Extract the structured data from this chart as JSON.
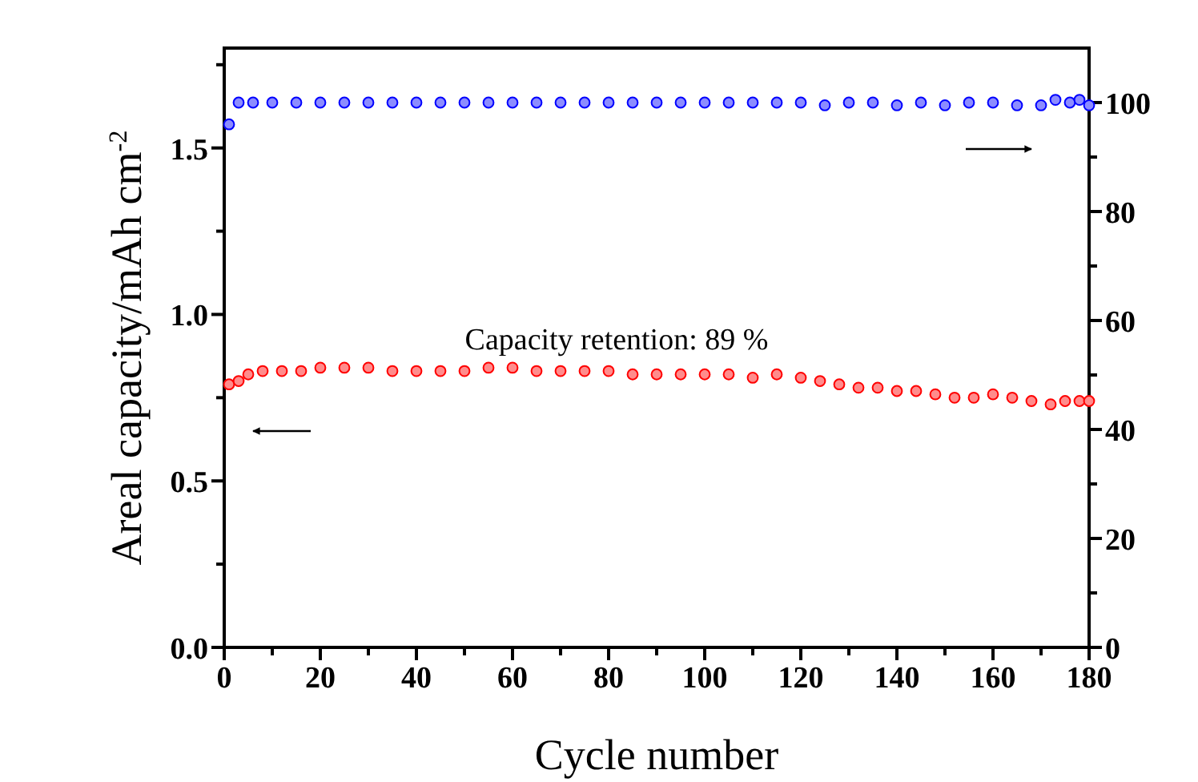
{
  "chart_data": {
    "type": "scatter",
    "xlabel": "Cycle number",
    "ylabel": "Areal capacity/mAh cm$^{-2}$",
    "marker": "circle",
    "grid": false,
    "annotations": [
      "Capacity retention: 89 %"
    ],
    "xlim": [
      0,
      180
    ],
    "xticks": [
      0,
      {
        "value": 10,
        "label": null
      },
      20,
      {
        "value": 30,
        "label": null
      },
      40,
      {
        "value": 50,
        "label": null
      },
      60,
      {
        "value": 70,
        "label": null
      },
      80,
      {
        "value": 90,
        "label": null
      },
      100,
      {
        "value": 110,
        "label": null
      },
      120,
      {
        "value": 130,
        "label": null
      },
      140,
      {
        "value": 150,
        "label": null
      },
      160,
      {
        "value": 170,
        "label": null
      },
      180
    ],
    "ylim": [
      0,
      1.8
    ],
    "yticks": [
      {
        "value": 0,
        "label": "0.0"
      },
      {
        "value": 0.25,
        "label": null
      },
      0.5,
      {
        "value": 0.75,
        "label": null
      },
      {
        "value": 1,
        "label": "1.0"
      },
      {
        "value": 1.25,
        "label": null
      },
      1.5,
      {
        "value": 1.75,
        "label": null
      }
    ],
    "y2lim": [
      0,
      110
    ],
    "y2ticks": [
      0,
      {
        "value": 10,
        "label": null
      },
      20,
      {
        "value": 30,
        "label": null
      },
      40,
      {
        "value": 50,
        "label": null
      },
      60,
      {
        "value": 70,
        "label": null
      },
      80,
      {
        "value": 90,
        "label": null
      },
      100
    ],
    "series": [
      {
        "color": "#ff0000",
        "x": [
          1,
          3,
          5,
          8,
          12,
          16,
          20,
          25,
          30,
          35,
          40,
          45,
          50,
          55,
          60,
          65,
          70,
          75,
          80,
          85,
          90,
          95,
          100,
          105,
          110,
          115,
          120,
          124,
          128,
          132,
          136,
          140,
          144,
          148,
          152,
          156,
          160,
          164,
          168,
          172,
          175,
          178,
          180
        ],
        "values": [
          0.79,
          0.8,
          0.82,
          0.83,
          0.83,
          0.83,
          0.84,
          0.84,
          0.84,
          0.83,
          0.83,
          0.83,
          0.83,
          0.84,
          0.84,
          0.83,
          0.83,
          0.83,
          0.83,
          0.82,
          0.82,
          0.82,
          0.82,
          0.82,
          0.81,
          0.82,
          0.81,
          0.8,
          0.79,
          0.78,
          0.78,
          0.77,
          0.77,
          0.76,
          0.75,
          0.75,
          0.76,
          0.75,
          0.74,
          0.73,
          0.74,
          0.74,
          0.74
        ]
      },
      {
        "color": "#0000ff",
        "axis": "y2",
        "x": [
          1,
          3,
          6,
          10,
          15,
          20,
          25,
          30,
          35,
          40,
          45,
          50,
          55,
          60,
          65,
          70,
          75,
          80,
          85,
          90,
          95,
          100,
          105,
          110,
          115,
          120,
          125,
          130,
          135,
          140,
          145,
          150,
          155,
          160,
          165,
          170,
          173,
          176,
          178,
          180
        ],
        "values": [
          96,
          100,
          100,
          100,
          100,
          100,
          100,
          100,
          100,
          100,
          100,
          100,
          100,
          100,
          100,
          100,
          100,
          100,
          100,
          100,
          100,
          100,
          100,
          100,
          100,
          100,
          99.5,
          100,
          100,
          99.5,
          100,
          99.5,
          100,
          100,
          99.5,
          99.5,
          100.5,
          100,
          100.5,
          99.5
        ]
      }
    ]
  }
}
